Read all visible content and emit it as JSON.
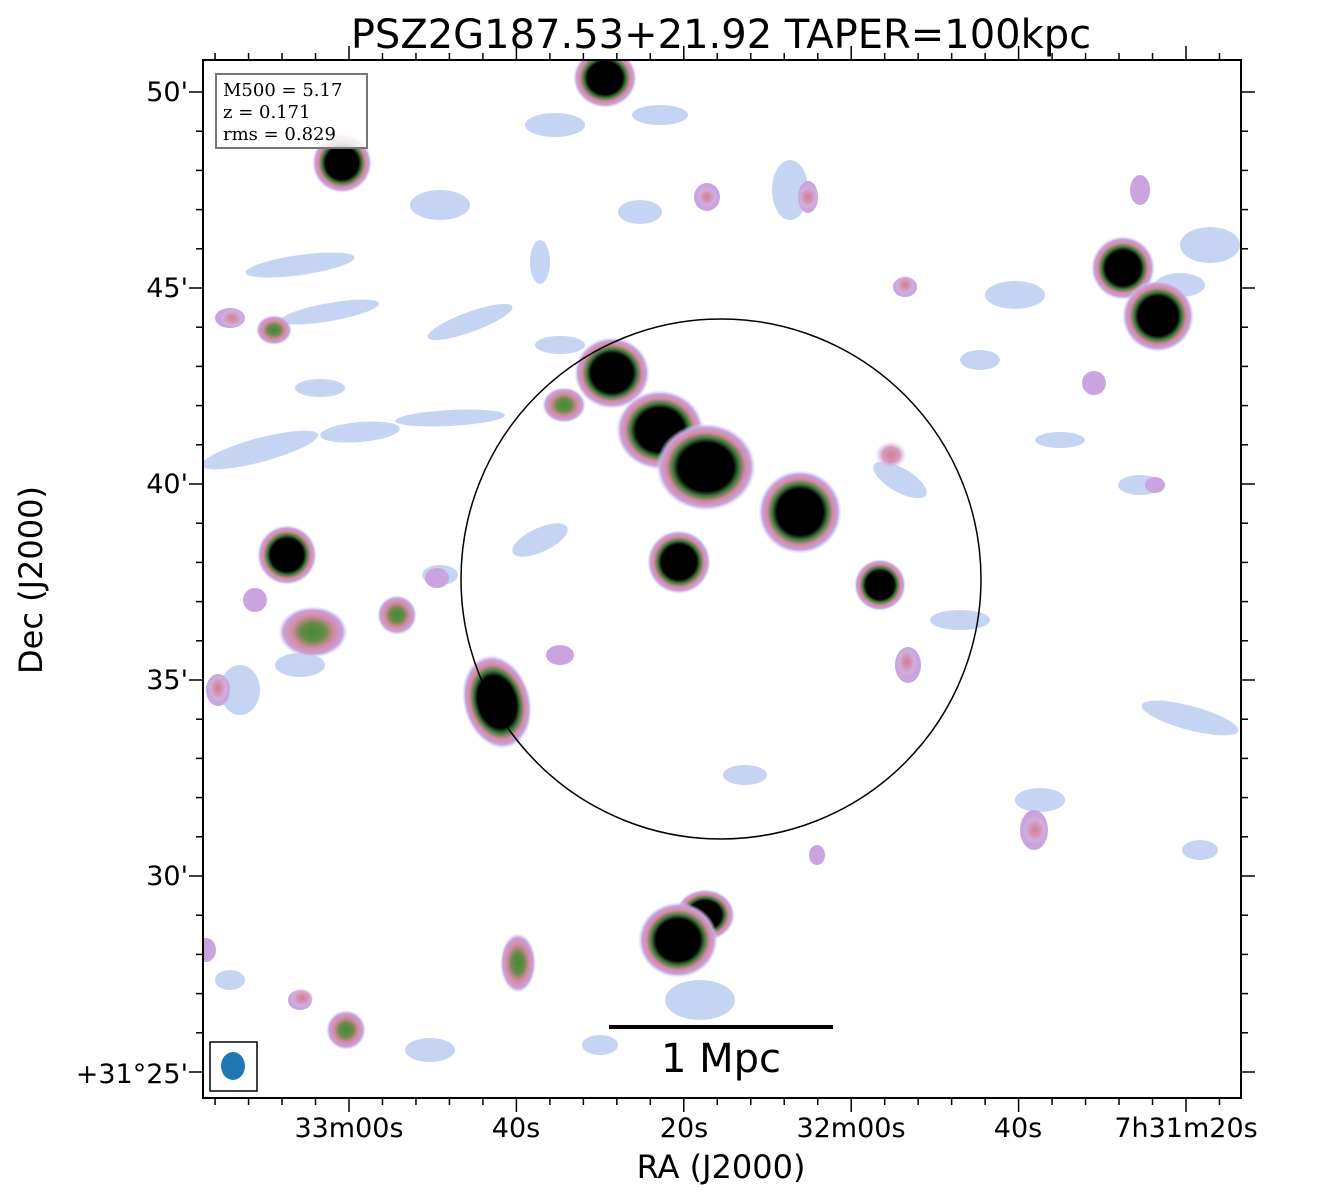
{
  "title": "PSZ2G187.53+21.92 TAPER=100kpc",
  "xlabel": "RA (J2000)",
  "ylabel": "Dec (J2000)",
  "x_ticks": [
    "33m00s",
    "40s",
    "20s",
    "32m00s",
    "40s",
    "7h31m20s"
  ],
  "y_ticks": [
    "50'",
    "45'",
    "40'",
    "35'",
    "30'",
    "+31°25'"
  ],
  "info": {
    "m500": "M500 = 5.17",
    "z": "z = 0.171",
    "rms": "rms = 0.829"
  },
  "scalebar_label": "1 Mpc",
  "colors": {
    "faint": "#bcd0f0",
    "faint2": "#c8e6ea",
    "mid": "#c7a0dc",
    "pink": "#d88aa0",
    "green": "#4c8a3c",
    "core": "#000000",
    "beam": "#1f77b4"
  }
}
